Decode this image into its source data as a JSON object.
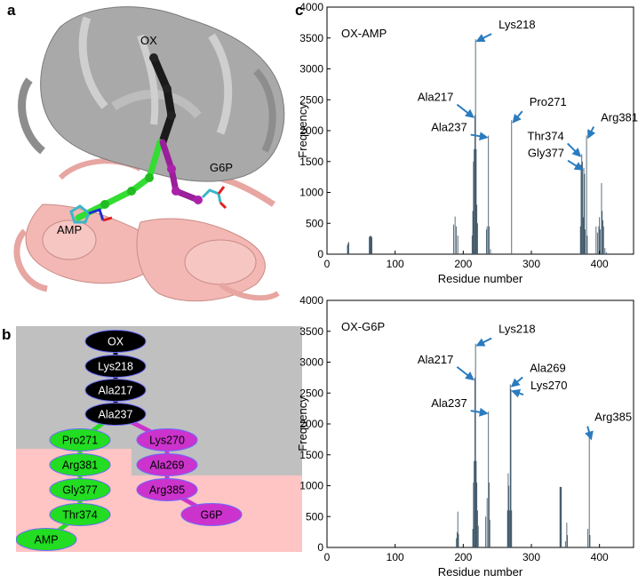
{
  "panels": {
    "a": {
      "letter": "a",
      "labels": {
        "ox": "OX",
        "g6p": "G6P",
        "amp": "AMP"
      }
    },
    "b": {
      "letter": "b",
      "nodes": [
        {
          "id": "n-ox",
          "label": "OX",
          "color": "#000000",
          "text_color": "#ffffff"
        },
        {
          "id": "n-lys218",
          "label": "Lys218",
          "color": "#000000",
          "text_color": "#ffffff"
        },
        {
          "id": "n-ala217",
          "label": "Ala217",
          "color": "#000000",
          "text_color": "#ffffff"
        },
        {
          "id": "n-ala237",
          "label": "Ala237",
          "color": "#000000",
          "text_color": "#ffffff"
        },
        {
          "id": "n-pro271",
          "label": "Pro271",
          "color": "#22dd22",
          "text_color": "#000000"
        },
        {
          "id": "n-arg381",
          "label": "Arg381",
          "color": "#22dd22",
          "text_color": "#000000"
        },
        {
          "id": "n-gly377",
          "label": "Gly377",
          "color": "#22dd22",
          "text_color": "#000000"
        },
        {
          "id": "n-thr374",
          "label": "Thr374",
          "color": "#22dd22",
          "text_color": "#000000"
        },
        {
          "id": "n-amp",
          "label": "AMP",
          "color": "#22dd22",
          "text_color": "#000000"
        },
        {
          "id": "n-lys270",
          "label": "Lys270",
          "color": "#cc33cc",
          "text_color": "#000000"
        },
        {
          "id": "n-ala269",
          "label": "Ala269",
          "color": "#cc33cc",
          "text_color": "#000000"
        },
        {
          "id": "n-arg385",
          "label": "Arg385",
          "color": "#cc33cc",
          "text_color": "#000000"
        },
        {
          "id": "n-g6p",
          "label": "G6P",
          "color": "#cc33cc",
          "text_color": "#000000"
        }
      ],
      "colors": {
        "upper_region": "#c0c0c0",
        "lower_region": "#ffc4c4"
      }
    },
    "c": {
      "letter": "c"
    }
  },
  "chart_data": [
    {
      "type": "bar",
      "title": "OX-AMP",
      "xlabel": "Residue number",
      "ylabel": "Frequency",
      "xlim": [
        0,
        450
      ],
      "ylim": [
        0,
        4000
      ],
      "xticks": [
        0,
        100,
        200,
        300,
        400
      ],
      "yticks": [
        0,
        500,
        1000,
        1500,
        2000,
        2500,
        3000,
        3500,
        4000
      ],
      "bar_color": "#3d5566",
      "grid": false,
      "bars": [
        {
          "x": 30,
          "y": 150
        },
        {
          "x": 31,
          "y": 180
        },
        {
          "x": 32,
          "y": 195
        },
        {
          "x": 62,
          "y": 280
        },
        {
          "x": 63,
          "y": 290
        },
        {
          "x": 64,
          "y": 300
        },
        {
          "x": 65,
          "y": 290
        },
        {
          "x": 66,
          "y": 270
        },
        {
          "x": 186,
          "y": 480
        },
        {
          "x": 188,
          "y": 610
        },
        {
          "x": 190,
          "y": 450
        },
        {
          "x": 192,
          "y": 300
        },
        {
          "x": 213,
          "y": 300
        },
        {
          "x": 214,
          "y": 700
        },
        {
          "x": 215,
          "y": 1500
        },
        {
          "x": 216,
          "y": 1700
        },
        {
          "x": 217,
          "y": 2250
        },
        {
          "x": 218,
          "y": 3480
        },
        {
          "x": 219,
          "y": 1700
        },
        {
          "x": 220,
          "y": 800
        },
        {
          "x": 221,
          "y": 500
        },
        {
          "x": 234,
          "y": 400
        },
        {
          "x": 235,
          "y": 450
        },
        {
          "x": 237,
          "y": 1920
        },
        {
          "x": 238,
          "y": 450
        },
        {
          "x": 240,
          "y": 80
        },
        {
          "x": 271,
          "y": 2170
        },
        {
          "x": 372,
          "y": 450
        },
        {
          "x": 373,
          "y": 1450
        },
        {
          "x": 374,
          "y": 1620
        },
        {
          "x": 375,
          "y": 1500
        },
        {
          "x": 376,
          "y": 600
        },
        {
          "x": 377,
          "y": 1400
        },
        {
          "x": 378,
          "y": 1300
        },
        {
          "x": 379,
          "y": 400
        },
        {
          "x": 381,
          "y": 1920
        },
        {
          "x": 382,
          "y": 300
        },
        {
          "x": 395,
          "y": 450
        },
        {
          "x": 397,
          "y": 350
        },
        {
          "x": 399,
          "y": 450
        },
        {
          "x": 400,
          "y": 600
        },
        {
          "x": 401,
          "y": 400
        },
        {
          "x": 403,
          "y": 1150
        },
        {
          "x": 404,
          "y": 700
        },
        {
          "x": 405,
          "y": 550
        },
        {
          "x": 406,
          "y": 450
        },
        {
          "x": 408,
          "y": 100
        },
        {
          "x": 410,
          "y": 30
        }
      ],
      "annotations": [
        {
          "text": "Lys218",
          "x": 218,
          "y": 3480
        },
        {
          "text": "Ala217",
          "x": 217,
          "y": 2250
        },
        {
          "text": "Ala237",
          "x": 237,
          "y": 1920
        },
        {
          "text": "Pro271",
          "x": 271,
          "y": 2170
        },
        {
          "text": "Thr374",
          "x": 374,
          "y": 1620
        },
        {
          "text": "Gly377",
          "x": 377,
          "y": 1400
        },
        {
          "text": "Arg381",
          "x": 381,
          "y": 1920
        }
      ]
    },
    {
      "type": "bar",
      "title": "OX-G6P",
      "xlabel": "Residue number",
      "ylabel": "Frequency",
      "xlim": [
        0,
        450
      ],
      "ylim": [
        0,
        4000
      ],
      "xticks": [
        0,
        100,
        200,
        300,
        400
      ],
      "yticks": [
        0,
        500,
        1000,
        1500,
        2000,
        2500,
        3000,
        3500,
        4000
      ],
      "bar_color": "#3d5566",
      "grid": false,
      "bars": [
        {
          "x": 190,
          "y": 150
        },
        {
          "x": 191,
          "y": 250
        },
        {
          "x": 192,
          "y": 580
        },
        {
          "x": 193,
          "y": 220
        },
        {
          "x": 214,
          "y": 300
        },
        {
          "x": 215,
          "y": 1050
        },
        {
          "x": 216,
          "y": 1400
        },
        {
          "x": 217,
          "y": 2750
        },
        {
          "x": 218,
          "y": 3300
        },
        {
          "x": 219,
          "y": 1400
        },
        {
          "x": 220,
          "y": 1050
        },
        {
          "x": 221,
          "y": 600
        },
        {
          "x": 222,
          "y": 350
        },
        {
          "x": 233,
          "y": 500
        },
        {
          "x": 235,
          "y": 800
        },
        {
          "x": 237,
          "y": 2200
        },
        {
          "x": 238,
          "y": 1050
        },
        {
          "x": 239,
          "y": 450
        },
        {
          "x": 265,
          "y": 600
        },
        {
          "x": 266,
          "y": 1200
        },
        {
          "x": 267,
          "y": 1000
        },
        {
          "x": 268,
          "y": 600
        },
        {
          "x": 269,
          "y": 2640
        },
        {
          "x": 270,
          "y": 2560
        },
        {
          "x": 271,
          "y": 600
        },
        {
          "x": 342,
          "y": 980
        },
        {
          "x": 343,
          "y": 980
        },
        {
          "x": 344,
          "y": 980
        },
        {
          "x": 350,
          "y": 100
        },
        {
          "x": 352,
          "y": 400
        },
        {
          "x": 353,
          "y": 200
        },
        {
          "x": 383,
          "y": 300
        },
        {
          "x": 385,
          "y": 1790
        },
        {
          "x": 386,
          "y": 200
        }
      ],
      "annotations": [
        {
          "text": "Lys218",
          "x": 218,
          "y": 3300
        },
        {
          "text": "Ala217",
          "x": 217,
          "y": 2750
        },
        {
          "text": "Ala237",
          "x": 237,
          "y": 2200
        },
        {
          "text": "Ala269",
          "x": 269,
          "y": 2640
        },
        {
          "text": "Lys270",
          "x": 270,
          "y": 2560
        },
        {
          "text": "Arg385",
          "x": 385,
          "y": 1790
        }
      ]
    }
  ]
}
